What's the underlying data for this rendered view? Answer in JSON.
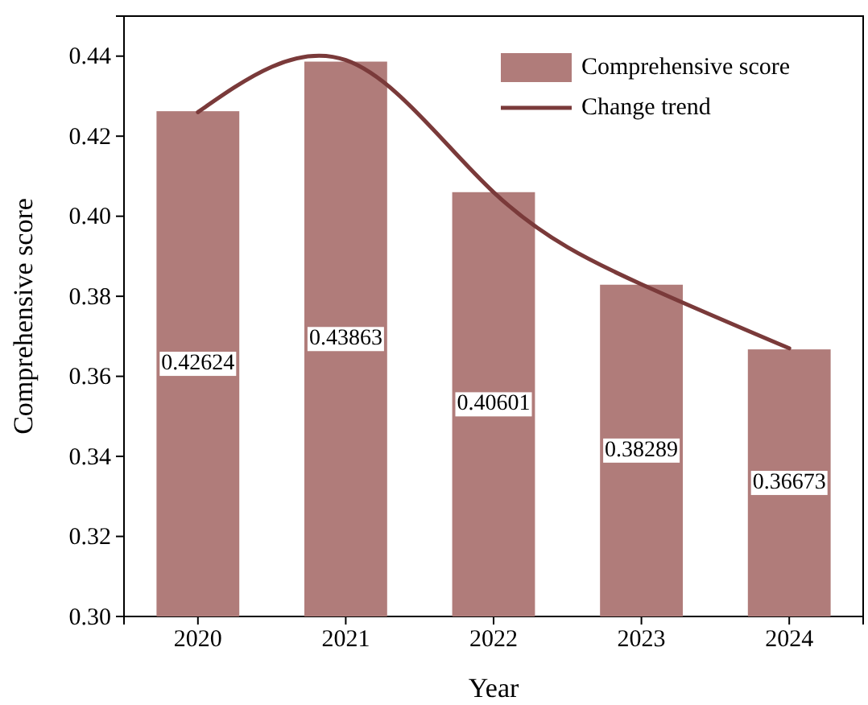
{
  "chart_data": {
    "type": "bar",
    "xlabel": "Year",
    "ylabel": "Comprehensive score",
    "categories": [
      "2020",
      "2021",
      "2022",
      "2023",
      "2024"
    ],
    "series": [
      {
        "name": "Comprehensive score",
        "color": "#b07c7a",
        "values": [
          0.42624,
          0.43863,
          0.40601,
          0.38289,
          0.36673
        ],
        "value_labels": [
          "0.42624",
          "0.43863",
          "0.40601",
          "0.38289",
          "0.36673"
        ]
      },
      {
        "name": "Change trend",
        "type": "line",
        "color": "#7a3a3a",
        "values": [
          0.426,
          0.439,
          0.406,
          0.383,
          0.367
        ]
      }
    ],
    "ylim": [
      0.3,
      0.45
    ],
    "yticks": [
      {
        "value": 0.3,
        "label": "0.30"
      },
      {
        "value": 0.32,
        "label": "0.32"
      },
      {
        "value": 0.34,
        "label": "0.34"
      },
      {
        "value": 0.36,
        "label": "0.36"
      },
      {
        "value": 0.38,
        "label": "0.38"
      },
      {
        "value": 0.4,
        "label": "0.40"
      },
      {
        "value": 0.42,
        "label": "0.42"
      },
      {
        "value": 0.44,
        "label": "0.44"
      }
    ],
    "grid": false,
    "legend": "top right"
  }
}
